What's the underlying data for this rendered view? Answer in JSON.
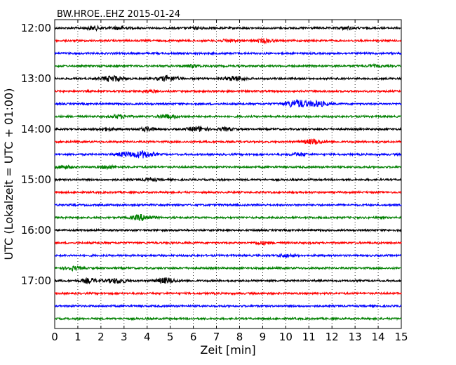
{
  "chart_data": {
    "type": "line",
    "title": "BW.HROE..EHZ 2015-01-24",
    "xlabel": "Zeit  [min]",
    "ylabel": "UTC (Lokalzeit = UTC + 01:00)",
    "xlim": [
      0,
      15
    ],
    "x_ticks": [
      "0",
      "1",
      "2",
      "3",
      "4",
      "5",
      "6",
      "7",
      "8",
      "9",
      "10",
      "11",
      "12",
      "13",
      "14",
      "15"
    ],
    "y_ticks": [
      "12:00",
      "13:00",
      "14:00",
      "15:00",
      "16:00",
      "17:00"
    ],
    "grid": "vertical dotted",
    "trace_interval_min": 15,
    "trace_colors": [
      "#000000",
      "#ff0000",
      "#0000ff",
      "#008000"
    ],
    "series": [
      {
        "start": "12:00",
        "color": "#000000",
        "bursts": [
          [
            1.7,
            0.7
          ],
          [
            2.8,
            0.6
          ],
          [
            6.2,
            0.4
          ],
          [
            12.6,
            0.5
          ]
        ]
      },
      {
        "start": "12:15",
        "color": "#ff0000",
        "bursts": [
          [
            7.5,
            0.5
          ],
          [
            9.1,
            0.7
          ]
        ]
      },
      {
        "start": "12:30",
        "color": "#0000ff",
        "bursts": []
      },
      {
        "start": "12:45",
        "color": "#008000",
        "bursts": [
          [
            6.0,
            0.5
          ],
          [
            13.8,
            0.4
          ]
        ]
      },
      {
        "start": "13:00",
        "color": "#000000",
        "bursts": [
          [
            2.5,
            1.2
          ],
          [
            4.9,
            1.1
          ],
          [
            7.8,
            0.9
          ]
        ]
      },
      {
        "start": "13:15",
        "color": "#ff0000",
        "bursts": [
          [
            4.1,
            0.5
          ]
        ]
      },
      {
        "start": "13:30",
        "color": "#0000ff",
        "bursts": [
          [
            10.5,
            1.6
          ],
          [
            11.4,
            1.0
          ]
        ]
      },
      {
        "start": "13:45",
        "color": "#008000",
        "bursts": [
          [
            2.8,
            0.7
          ],
          [
            4.9,
            0.8
          ]
        ]
      },
      {
        "start": "14:00",
        "color": "#000000",
        "bursts": [
          [
            2.2,
            0.6
          ],
          [
            4.0,
            0.7
          ],
          [
            6.2,
            1.0
          ],
          [
            7.4,
            0.6
          ]
        ]
      },
      {
        "start": "14:15",
        "color": "#ff0000",
        "bursts": [
          [
            11.2,
            1.0
          ]
        ]
      },
      {
        "start": "14:30",
        "color": "#0000ff",
        "bursts": [
          [
            3.0,
            0.8
          ],
          [
            3.8,
            1.4
          ],
          [
            10.6,
            0.6
          ]
        ]
      },
      {
        "start": "14:45",
        "color": "#008000",
        "bursts": [
          [
            0.4,
            0.7
          ],
          [
            2.3,
            0.6
          ]
        ]
      },
      {
        "start": "15:00",
        "color": "#000000",
        "bursts": [
          [
            4.1,
            0.5
          ]
        ]
      },
      {
        "start": "15:15",
        "color": "#ff0000",
        "bursts": []
      },
      {
        "start": "15:30",
        "color": "#0000ff",
        "bursts": []
      },
      {
        "start": "15:45",
        "color": "#008000",
        "bursts": [
          [
            3.8,
            1.2
          ]
        ]
      },
      {
        "start": "16:00",
        "color": "#000000",
        "bursts": []
      },
      {
        "start": "16:15",
        "color": "#ff0000",
        "bursts": [
          [
            9.0,
            0.6
          ]
        ]
      },
      {
        "start": "16:30",
        "color": "#0000ff",
        "bursts": [
          [
            10.0,
            0.6
          ]
        ]
      },
      {
        "start": "16:45",
        "color": "#008000",
        "bursts": [
          [
            0.8,
            0.7
          ]
        ]
      },
      {
        "start": "17:00",
        "color": "#000000",
        "bursts": [
          [
            1.5,
            0.9
          ],
          [
            2.7,
            1.0
          ],
          [
            4.8,
            1.1
          ]
        ]
      },
      {
        "start": "17:15",
        "color": "#ff0000",
        "bursts": []
      },
      {
        "start": "17:30",
        "color": "#0000ff",
        "bursts": []
      },
      {
        "start": "17:45",
        "color": "#008000",
        "bursts": []
      }
    ]
  }
}
